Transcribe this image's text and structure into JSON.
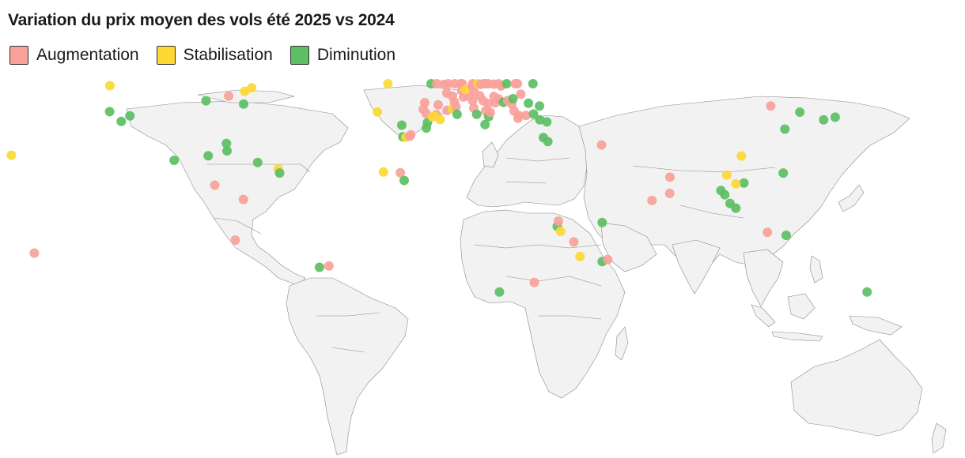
{
  "title": "Variation du prix moyen des vols été 2025 vs 2024",
  "legend": [
    {
      "key": "inc",
      "label": "Augmentation",
      "color": "#f9a19a"
    },
    {
      "key": "stab",
      "label": "Stabilisation",
      "color": "#fdd835"
    },
    {
      "key": "dec",
      "label": "Diminution",
      "color": "#5cbf63"
    }
  ],
  "map_points": [
    {
      "lon": -157.9,
      "lat": 21.3,
      "category": "stab"
    },
    {
      "lon": -149.6,
      "lat": -17.5,
      "category": "inc"
    },
    {
      "lon": -122.3,
      "lat": 47.6,
      "category": "stab"
    },
    {
      "lon": -122.4,
      "lat": 37.8,
      "category": "dec"
    },
    {
      "lon": -118.2,
      "lat": 34.1,
      "category": "dec"
    },
    {
      "lon": -115.1,
      "lat": 36.2,
      "category": "dec"
    },
    {
      "lon": -99.1,
      "lat": 19.4,
      "category": "dec"
    },
    {
      "lon": -87.6,
      "lat": 41.9,
      "category": "dec"
    },
    {
      "lon": -86.8,
      "lat": 21.1,
      "category": "dec"
    },
    {
      "lon": -84.4,
      "lat": 10.0,
      "category": "inc"
    },
    {
      "lon": -80.2,
      "lat": 25.8,
      "category": "dec"
    },
    {
      "lon": -79.4,
      "lat": 43.7,
      "category": "inc"
    },
    {
      "lon": -80.0,
      "lat": 23.0,
      "category": "dec"
    },
    {
      "lon": -77.0,
      "lat": -12.0,
      "category": "inc"
    },
    {
      "lon": -74.1,
      "lat": 4.6,
      "category": "inc"
    },
    {
      "lon": -74.0,
      "lat": 40.7,
      "category": "dec"
    },
    {
      "lon": -73.6,
      "lat": 45.5,
      "category": "stab"
    },
    {
      "lon": -71.1,
      "lat": 46.8,
      "category": "stab"
    },
    {
      "lon": -68.9,
      "lat": 18.6,
      "category": "dec"
    },
    {
      "lon": -61.5,
      "lat": 16.2,
      "category": "stab"
    },
    {
      "lon": -61.0,
      "lat": 14.6,
      "category": "dec"
    },
    {
      "lon": -43.2,
      "lat": -22.9,
      "category": "inc"
    },
    {
      "lon": -46.6,
      "lat": -23.5,
      "category": "dec"
    },
    {
      "lon": -25.7,
      "lat": 37.7,
      "category": "stab"
    },
    {
      "lon": -23.5,
      "lat": 15.0,
      "category": "stab"
    },
    {
      "lon": -21.9,
      "lat": 64.1,
      "category": "stab"
    },
    {
      "lon": -17.4,
      "lat": 14.7,
      "category": "inc"
    },
    {
      "lon": -16.9,
      "lat": 32.7,
      "category": "dec"
    },
    {
      "lon": -16.5,
      "lat": 28.3,
      "category": "dec"
    },
    {
      "lon": -15.4,
      "lat": 28.1,
      "category": "stab"
    },
    {
      "lon": -14.0,
      "lat": 28.5,
      "category": "inc"
    },
    {
      "lon": -13.6,
      "lat": 29.0,
      "category": "inc"
    },
    {
      "lon": -7.6,
      "lat": 33.6,
      "category": "dec"
    },
    {
      "lon": -9.1,
      "lat": 38.7,
      "category": "inc"
    },
    {
      "lon": -8.6,
      "lat": 41.2,
      "category": "inc"
    },
    {
      "lon": -8.0,
      "lat": 31.6,
      "category": "dec"
    },
    {
      "lon": -8.0,
      "lat": 37.0,
      "category": "inc"
    },
    {
      "lon": -6.3,
      "lat": 53.3,
      "category": "dec"
    },
    {
      "lon": -5.8,
      "lat": 35.8,
      "category": "stab"
    },
    {
      "lon": -4.4,
      "lat": 36.7,
      "category": "inc"
    },
    {
      "lon": -3.7,
      "lat": 40.4,
      "category": "inc"
    },
    {
      "lon": -4.3,
      "lat": 55.9,
      "category": "inc"
    },
    {
      "lon": -1.7,
      "lat": 48.1,
      "category": "inc"
    },
    {
      "lon": -0.6,
      "lat": 44.8,
      "category": "inc"
    },
    {
      "lon": -0.5,
      "lat": 38.3,
      "category": "inc"
    },
    {
      "lon": -0.1,
      "lat": 51.5,
      "category": "inc"
    },
    {
      "lon": 1.4,
      "lat": 38.9,
      "category": "stab"
    },
    {
      "lon": 1.4,
      "lat": 43.6,
      "category": "inc"
    },
    {
      "lon": 2.2,
      "lat": 41.4,
      "category": "inc"
    },
    {
      "lon": 2.3,
      "lat": 48.9,
      "category": "inc"
    },
    {
      "lon": 2.7,
      "lat": 39.6,
      "category": "inc"
    },
    {
      "lon": 3.1,
      "lat": 36.8,
      "category": "dec"
    },
    {
      "lon": 4.4,
      "lat": 51.2,
      "category": "inc"
    },
    {
      "lon": 4.9,
      "lat": 52.4,
      "category": "inc"
    },
    {
      "lon": 4.8,
      "lat": 45.8,
      "category": "inc"
    },
    {
      "lon": 5.4,
      "lat": 43.3,
      "category": "inc"
    },
    {
      "lon": 7.3,
      "lat": 43.7,
      "category": "inc"
    },
    {
      "lon": 6.1,
      "lat": 46.2,
      "category": "stab"
    },
    {
      "lon": 8.5,
      "lat": 47.4,
      "category": "inc"
    },
    {
      "lon": 8.7,
      "lat": 41.9,
      "category": "inc"
    },
    {
      "lon": 8.7,
      "lat": 50.1,
      "category": "inc"
    },
    {
      "lon": 9.1,
      "lat": 39.2,
      "category": "inc"
    },
    {
      "lon": 9.2,
      "lat": 45.5,
      "category": "inc"
    },
    {
      "lon": 10.2,
      "lat": 36.8,
      "category": "dec"
    },
    {
      "lon": 10.6,
      "lat": 59.9,
      "category": "stab"
    },
    {
      "lon": 11.3,
      "lat": 43.8,
      "category": "inc"
    },
    {
      "lon": 11.6,
      "lat": 48.1,
      "category": "inc"
    },
    {
      "lon": 12.5,
      "lat": 41.9,
      "category": "inc"
    },
    {
      "lon": 12.6,
      "lat": 55.7,
      "category": "inc"
    },
    {
      "lon": 13.2,
      "lat": 32.9,
      "category": "dec"
    },
    {
      "lon": 13.4,
      "lat": 52.5,
      "category": "inc"
    },
    {
      "lon": 13.4,
      "lat": 38.1,
      "category": "inc"
    },
    {
      "lon": 14.3,
      "lat": 40.8,
      "category": "inc"
    },
    {
      "lon": 14.4,
      "lat": 50.1,
      "category": "inc"
    },
    {
      "lon": 14.5,
      "lat": 35.9,
      "category": "dec"
    },
    {
      "lon": 15.1,
      "lat": 37.5,
      "category": "inc"
    },
    {
      "lon": 16.4,
      "lat": 48.2,
      "category": "inc"
    },
    {
      "lon": 16.4,
      "lat": 43.5,
      "category": "inc"
    },
    {
      "lon": 16.9,
      "lat": 41.1,
      "category": "inc"
    },
    {
      "lon": 18.1,
      "lat": 42.6,
      "category": "inc"
    },
    {
      "lon": 18.1,
      "lat": 59.3,
      "category": "inc"
    },
    {
      "lon": 19.0,
      "lat": 47.5,
      "category": "inc"
    },
    {
      "lon": 19.8,
      "lat": 41.3,
      "category": "dec"
    },
    {
      "lon": 21.0,
      "lat": 52.2,
      "category": "dec"
    },
    {
      "lon": 21.4,
      "lat": 42.0,
      "category": "inc"
    },
    {
      "lon": 22.9,
      "lat": 40.6,
      "category": "inc"
    },
    {
      "lon": 23.7,
      "lat": 38.0,
      "category": "inc"
    },
    {
      "lon": 23.3,
      "lat": 42.7,
      "category": "dec"
    },
    {
      "lon": 24.9,
      "lat": 60.2,
      "category": "inc"
    },
    {
      "lon": 25.4,
      "lat": 36.4,
      "category": "inc"
    },
    {
      "lon": 26.1,
      "lat": 44.4,
      "category": "inc"
    },
    {
      "lon": 25.1,
      "lat": 35.3,
      "category": "inc"
    },
    {
      "lon": 24.1,
      "lat": 56.9,
      "category": "inc"
    },
    {
      "lon": 28.0,
      "lat": 36.4,
      "category": "inc"
    },
    {
      "lon": 28.9,
      "lat": 41.0,
      "category": "dec"
    },
    {
      "lon": 30.7,
      "lat": 36.9,
      "category": "dec"
    },
    {
      "lon": 30.5,
      "lat": 59.9,
      "category": "dec"
    },
    {
      "lon": 33.0,
      "lat": 34.7,
      "category": "dec"
    },
    {
      "lon": 32.9,
      "lat": 39.9,
      "category": "dec"
    },
    {
      "lon": 34.3,
      "lat": 28.0,
      "category": "dec"
    },
    {
      "lon": 35.5,
      "lat": 33.9,
      "category": "dec"
    },
    {
      "lon": 35.9,
      "lat": 26.5,
      "category": "dec"
    },
    {
      "lon": -3.0,
      "lat": 34.8,
      "category": "stab"
    },
    {
      "lon": -5.0,
      "lat": 36.0,
      "category": "stab"
    },
    {
      "lon": -16.0,
      "lat": 11.8,
      "category": "dec"
    },
    {
      "lon": 55.3,
      "lat": 25.2,
      "category": "inc"
    },
    {
      "lon": 39.3,
      "lat": -6.2,
      "category": "dec"
    },
    {
      "lon": 39.7,
      "lat": -4.0,
      "category": "inc"
    },
    {
      "lon": 40.5,
      "lat": -8.3,
      "category": "stab"
    },
    {
      "lon": 45.3,
      "lat": -12.8,
      "category": "inc"
    },
    {
      "lon": 47.5,
      "lat": -18.9,
      "category": "stab"
    },
    {
      "lon": 55.5,
      "lat": -4.6,
      "category": "dec"
    },
    {
      "lon": 55.5,
      "lat": -21.1,
      "category": "dec"
    },
    {
      "lon": 57.5,
      "lat": -20.2,
      "category": "inc"
    },
    {
      "lon": 18.4,
      "lat": -33.9,
      "category": "dec"
    },
    {
      "lon": 31.0,
      "lat": -29.9,
      "category": "inc"
    },
    {
      "lon": 73.5,
      "lat": 4.2,
      "category": "inc"
    },
    {
      "lon": 80.0,
      "lat": 13.0,
      "category": "inc"
    },
    {
      "lon": 79.9,
      "lat": 6.9,
      "category": "inc"
    },
    {
      "lon": 116.4,
      "lat": 39.9,
      "category": "inc"
    },
    {
      "lon": 126.9,
      "lat": 37.6,
      "category": "dec"
    },
    {
      "lon": 121.5,
      "lat": 31.2,
      "category": "dec"
    },
    {
      "lon": 139.7,
      "lat": 35.7,
      "category": "dec"
    },
    {
      "lon": 135.5,
      "lat": 34.7,
      "category": "dec"
    },
    {
      "lon": 105.8,
      "lat": 21.0,
      "category": "stab"
    },
    {
      "lon": 100.5,
      "lat": 13.8,
      "category": "stab"
    },
    {
      "lon": 98.4,
      "lat": 8.0,
      "category": "dec"
    },
    {
      "lon": 106.7,
      "lat": 10.8,
      "category": "dec"
    },
    {
      "lon": 103.8,
      "lat": 10.5,
      "category": "stab"
    },
    {
      "lon": 99.8,
      "lat": 6.4,
      "category": "dec"
    },
    {
      "lon": 101.7,
      "lat": 3.1,
      "category": "dec"
    },
    {
      "lon": 103.8,
      "lat": 1.3,
      "category": "dec"
    },
    {
      "lon": 120.9,
      "lat": 14.6,
      "category": "dec"
    },
    {
      "lon": 115.2,
      "lat": -8.7,
      "category": "inc"
    },
    {
      "lon": 122.0,
      "lat": -10.0,
      "category": "dec"
    },
    {
      "lon": 151.2,
      "lat": -33.9,
      "category": "dec"
    }
  ]
}
